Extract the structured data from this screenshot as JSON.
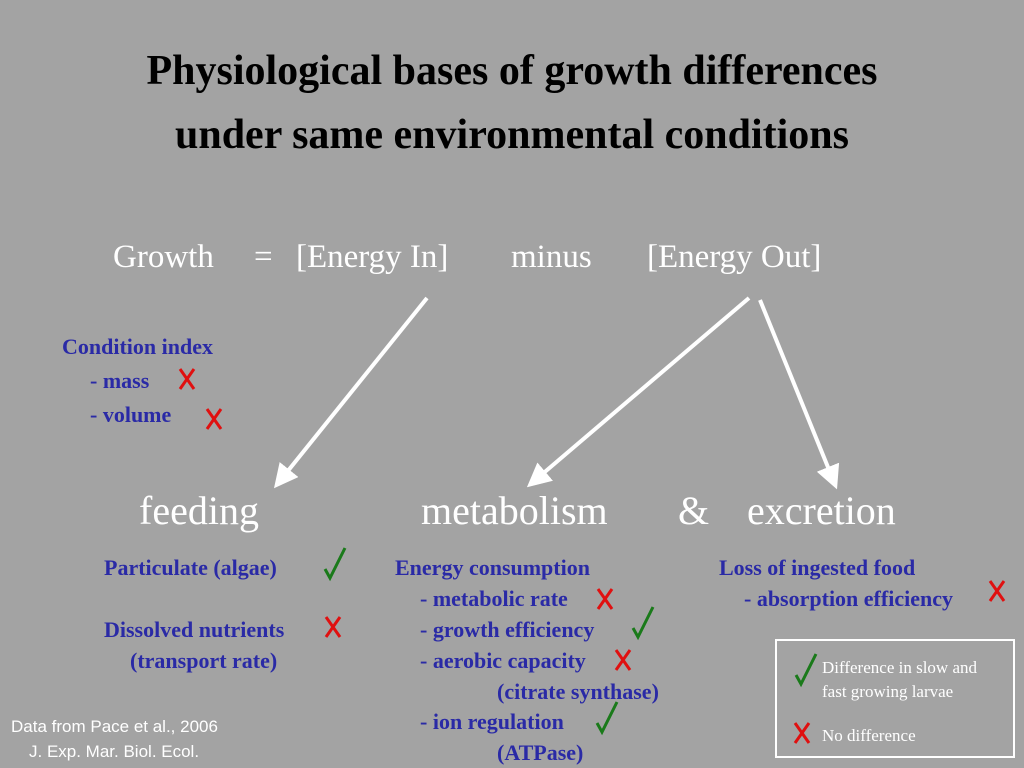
{
  "title": {
    "line1": "Physiological bases of growth differences",
    "line2": "under same environmental conditions"
  },
  "equation": {
    "growth": "Growth",
    "equals": "=",
    "energy_in": "[Energy In]",
    "minus": "minus",
    "energy_out": "[Energy Out]"
  },
  "condition_index": {
    "heading": "Condition index",
    "mass": "- mass",
    "volume": "- volume"
  },
  "categories": {
    "feeding": "feeding",
    "metabolism": "metabolism",
    "ampersand": "&",
    "excretion": "excretion"
  },
  "feeding_items": {
    "particulate": "Particulate (algae)",
    "dissolved": "Dissolved nutrients",
    "transport": "(transport rate)"
  },
  "metabolism_items": {
    "heading": "Energy consumption",
    "metabolic_rate": "- metabolic rate",
    "growth_efficiency": "- growth efficiency",
    "aerobic_capacity": "- aerobic capacity",
    "citrate_synthase": "(citrate synthase)",
    "ion_regulation": "- ion regulation",
    "atpase": "(ATPase)"
  },
  "excretion_items": {
    "heading": "Loss of ingested food",
    "absorption": "- absorption efficiency"
  },
  "legend": {
    "difference_line1": "Difference in slow and",
    "difference_line2": "fast growing larvae",
    "no_difference": "No difference"
  },
  "footnote": {
    "line1": "Data from Pace et al., 2006",
    "line2": "J. Exp. Mar. Biol. Ecol."
  },
  "colors": {
    "background": "#a3a3a3",
    "text_blue": "#2a2aa6",
    "check_green": "#1a7a1a",
    "cross_red": "#e01010"
  },
  "marks": {
    "mass": "cross-icon",
    "volume": "cross-icon",
    "particulate": "check-icon",
    "dissolved": "cross-icon",
    "metabolic_rate": "cross-icon",
    "growth_efficiency": "check-icon",
    "aerobic_capacity": "cross-icon",
    "ion_regulation": "check-icon",
    "absorption": "cross-icon"
  }
}
